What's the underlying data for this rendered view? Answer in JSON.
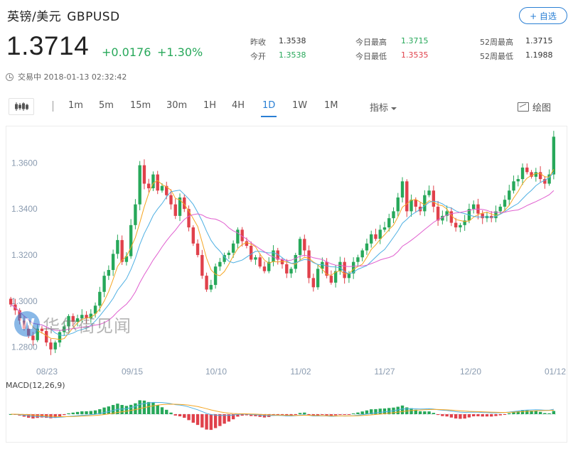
{
  "header": {
    "name": "英镑/美元",
    "symbol": "GBPUSD",
    "watch_label": "+ 自选"
  },
  "quote": {
    "price": "1.3714",
    "change": "+0.0176",
    "change_pct": "+1.30%",
    "status": "交易中 2018-01-13 02:32:42"
  },
  "stats": [
    {
      "label": "昨收",
      "value": "1.3538",
      "tone": "neutral"
    },
    {
      "label": "今开",
      "value": "1.3538",
      "tone": "up"
    },
    {
      "label": "今日最高",
      "value": "1.3715",
      "tone": "up"
    },
    {
      "label": "今日最低",
      "value": "1.3535",
      "tone": "down"
    },
    {
      "label": "52周最高",
      "value": "1.3715",
      "tone": "neutral"
    },
    {
      "label": "52周最低",
      "value": "1.1988",
      "tone": "neutral"
    }
  ],
  "toolbar": {
    "timeframes": [
      "1m",
      "5m",
      "15m",
      "30m",
      "1H",
      "4H",
      "1D",
      "1W",
      "1M"
    ],
    "active": "1D",
    "indicator_label": "指标",
    "draw_label": "绘图"
  },
  "watermark": {
    "logo": "W",
    "text": "华尔街见闻"
  },
  "colors": {
    "up": "#27a85a",
    "down": "#e0414b",
    "accent": "#2a7fd4",
    "ma_short": "#f5a623",
    "ma_mid": "#4fb0e3",
    "ma_long": "#e05fcf"
  },
  "chart_data": {
    "type": "candlestick",
    "title": "",
    "y_ticks": [
      "1.3600",
      "1.3400",
      "1.3200",
      "1.3000",
      "1.2800"
    ],
    "ylim": [
      1.274,
      1.374
    ],
    "x_ticks": [
      "08/23",
      "09/15",
      "10/10",
      "11/02",
      "11/27",
      "12/20",
      "01/12"
    ],
    "closes": [
      1.2985,
      1.296,
      1.2915,
      1.288,
      1.285,
      1.283,
      1.288,
      1.287,
      1.282,
      1.279,
      1.282,
      1.2865,
      1.289,
      1.2935,
      1.291,
      1.2925,
      1.294,
      1.2925,
      1.2945,
      1.298,
      1.304,
      1.311,
      1.3135,
      1.3205,
      1.3265,
      1.317,
      1.3195,
      1.333,
      1.342,
      1.359,
      1.351,
      1.349,
      1.355,
      1.348,
      1.35,
      1.346,
      1.342,
      1.337,
      1.345,
      1.34,
      1.332,
      1.325,
      1.32,
      1.311,
      1.305,
      1.307,
      1.315,
      1.317,
      1.32,
      1.321,
      1.325,
      1.331,
      1.326,
      1.324,
      1.318,
      1.319,
      1.315,
      1.313,
      1.317,
      1.322,
      1.318,
      1.316,
      1.312,
      1.314,
      1.32,
      1.327,
      1.322,
      1.31,
      1.306,
      1.314,
      1.317,
      1.311,
      1.308,
      1.313,
      1.317,
      1.31,
      1.312,
      1.317,
      1.319,
      1.322,
      1.325,
      1.329,
      1.327,
      1.331,
      1.332,
      1.336,
      1.339,
      1.345,
      1.352,
      1.339,
      1.344,
      1.341,
      1.339,
      1.346,
      1.348,
      1.341,
      1.335,
      1.337,
      1.339,
      1.334,
      1.332,
      1.333,
      1.335,
      1.34,
      1.342,
      1.338,
      1.336,
      1.337,
      1.336,
      1.339,
      1.341,
      1.344,
      1.348,
      1.352,
      1.353,
      1.358,
      1.356,
      1.354,
      1.356,
      1.353,
      1.351,
      1.355,
      1.3714
    ],
    "macd": {
      "label": "MACD(12,26,9)"
    }
  }
}
